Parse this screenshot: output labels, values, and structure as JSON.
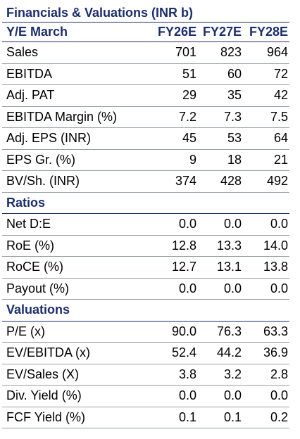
{
  "title": "Financials & Valuations (INR b)",
  "header": {
    "label": "Y/E March",
    "cols": [
      "FY26E",
      "FY27E",
      "FY28E"
    ]
  },
  "financials": [
    {
      "label": "Sales",
      "v": [
        "701",
        "823",
        "964"
      ]
    },
    {
      "label": "EBITDA",
      "v": [
        "51",
        "60",
        "72"
      ]
    },
    {
      "label": "Adj. PAT",
      "v": [
        "29",
        "35",
        "42"
      ]
    },
    {
      "label": "EBITDA Margin (%)",
      "v": [
        "7.2",
        "7.3",
        "7.5"
      ]
    },
    {
      "label": "Adj. EPS (INR)",
      "v": [
        "45",
        "53",
        "64"
      ]
    },
    {
      "label": "EPS Gr. (%)",
      "v": [
        "9",
        "18",
        "21"
      ]
    },
    {
      "label": "BV/Sh. (INR)",
      "v": [
        "374",
        "428",
        "492"
      ]
    }
  ],
  "ratios": {
    "title": "Ratios",
    "rows": [
      {
        "label": "Net D:E",
        "v": [
          "0.0",
          "0.0",
          "0.0"
        ]
      },
      {
        "label": "RoE (%)",
        "v": [
          "12.8",
          "13.3",
          "14.0"
        ]
      },
      {
        "label": "RoCE (%)",
        "v": [
          "12.7",
          "13.1",
          "13.8"
        ]
      },
      {
        "label": "Payout (%)",
        "v": [
          "0.0",
          "0.0",
          "0.0"
        ]
      }
    ]
  },
  "valuations": {
    "title": "Valuations",
    "rows": [
      {
        "label": "P/E (x)",
        "v": [
          "90.0",
          "76.3",
          "63.3"
        ]
      },
      {
        "label": "EV/EBITDA (x)",
        "v": [
          "52.4",
          "44.2",
          "36.9"
        ]
      },
      {
        "label": "EV/Sales (X)",
        "v": [
          "3.8",
          "3.2",
          "2.8"
        ]
      },
      {
        "label": "Div. Yield (%)",
        "v": [
          "0.0",
          "0.0",
          "0.0"
        ]
      },
      {
        "label": "FCF Yield (%)",
        "v": [
          "0.1",
          "0.1",
          "0.2"
        ]
      }
    ]
  },
  "colors": {
    "accent": "#1c2e6e",
    "row_rule": "#9aa0a6"
  }
}
